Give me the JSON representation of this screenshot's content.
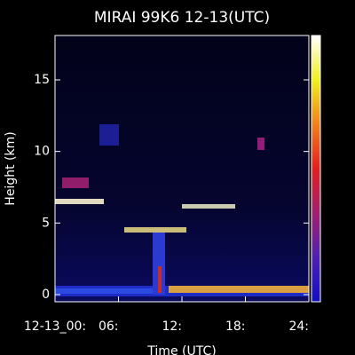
{
  "chart_data": {
    "type": "heatmap",
    "title": "MIRAI 99K6 12-13(UTC)",
    "x_label": "Time (UTC)",
    "y_label": "Height (km)",
    "xlim": [
      0,
      24
    ],
    "ylim": [
      -0.5,
      18.1
    ],
    "xticks": [
      {
        "value": 0,
        "label": "12-13_00:"
      },
      {
        "value": 6,
        "label": "06:"
      },
      {
        "value": 12,
        "label": "12:"
      },
      {
        "value": 18,
        "label": "18:"
      },
      {
        "value": 24,
        "label": "24:"
      }
    ],
    "yticks": [
      0,
      5,
      10,
      15
    ],
    "colormap": [
      "#1010c0",
      "#5020b0",
      "#a02070",
      "#e02020",
      "#f08020",
      "#f0f020",
      "#ffffff"
    ]
  }
}
